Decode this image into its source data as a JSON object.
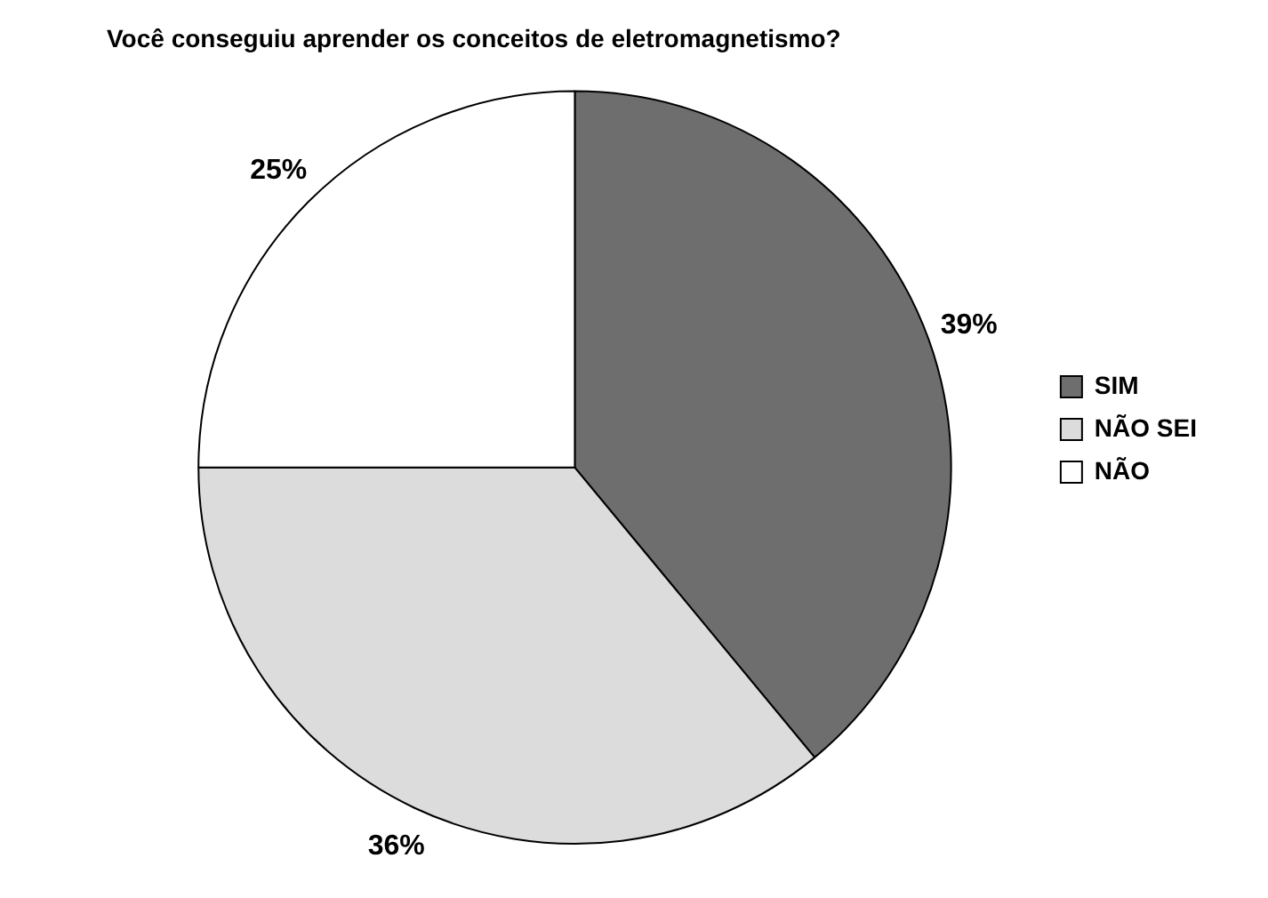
{
  "chart_data": {
    "type": "pie",
    "title": "Você conseguiu aprender os conceitos de eletromagnetismo?",
    "categories": [
      "SIM",
      "NÃO SEI",
      "NÃO"
    ],
    "values": [
      39,
      36,
      25
    ],
    "colors": [
      "#6e6e6e",
      "#dcdcdc",
      "#ffffff"
    ],
    "value_labels": [
      "39%",
      "36%",
      "25%"
    ],
    "legend": "right"
  }
}
